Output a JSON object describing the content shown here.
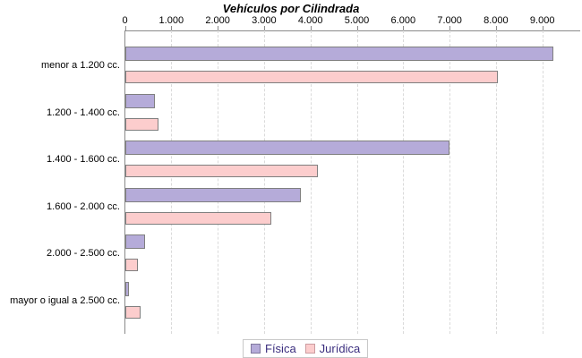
{
  "chart_data": {
    "type": "bar",
    "orientation": "horizontal",
    "title": "Vehículos por Cilindrada",
    "categories": [
      "menor a 1.200 cc.",
      "1.200 - 1.400 cc.",
      "1.400 - 1.600 cc.",
      "1.600 - 2.000 cc.",
      "2.000 - 2.500 cc.",
      "mayor o igual a 2.500 cc."
    ],
    "series": [
      {
        "name": "Física",
        "color": "#b5abd9",
        "values": [
          9240,
          640,
          7000,
          3790,
          430,
          90
        ]
      },
      {
        "name": "Jurídica",
        "color": "#fccdcd",
        "values": [
          8050,
          720,
          4160,
          3160,
          280,
          340
        ]
      }
    ],
    "xlabel": "",
    "ylabel": "",
    "xlim": [
      0,
      9800
    ],
    "x_ticks": [
      0,
      1000,
      2000,
      3000,
      4000,
      5000,
      6000,
      7000,
      8000,
      9000
    ],
    "x_tick_labels": [
      "0",
      "1.000",
      "2.000",
      "3.000",
      "4.000",
      "5.000",
      "6.000",
      "7.000",
      "8.000",
      "9.000"
    ],
    "grid": "vertical-dashed",
    "legend_position": "bottom-center"
  },
  "colors": {
    "axis": "#8a8a8a",
    "gridline": "#dadada",
    "bar_border": "#7f7f7f",
    "legend_border": "#c8c8c8",
    "legend_text": "#3a2d7e",
    "fisica_swatch_border": "#80789e",
    "juridica_swatch_border": "#cc9ca0"
  }
}
